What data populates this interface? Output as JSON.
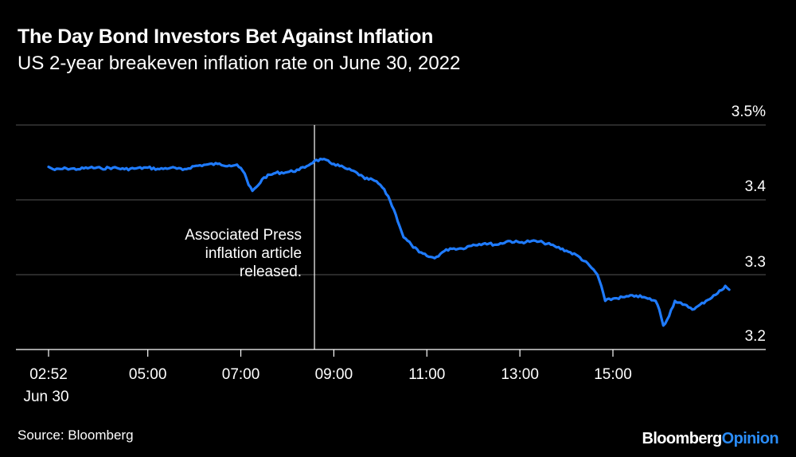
{
  "title": "The Day Bond Investors Bet Against Inflation",
  "subtitle": "US 2-year breakeven inflation rate on June 30, 2022",
  "source": "Source: Bloomberg",
  "logo": {
    "brand": "Bloomberg",
    "suffix": "Opinion"
  },
  "colors": {
    "line": "#1f7bff",
    "grid": "#555555",
    "background": "#000000",
    "accent": "#2a8cf7"
  },
  "chart_data": {
    "type": "line",
    "title": "The Day Bond Investors Bet Against Inflation",
    "subtitle": "US 2-year breakeven inflation rate on June 30, 2022",
    "xlabel": "",
    "ylabel": "",
    "ylim": [
      3.2,
      3.5
    ],
    "xlim": [
      "02:52",
      "17:45"
    ],
    "y_ticks": [
      3.2,
      3.3,
      3.4,
      3.5
    ],
    "y_tick_labels": [
      "3.2",
      "3.3",
      "3.4",
      "3.5%"
    ],
    "x_ticks": [
      {
        "time": "02:52",
        "label": "02:52",
        "sublabel": "Jun 30"
      },
      {
        "time": "05:00",
        "label": "05:00"
      },
      {
        "time": "07:00",
        "label": "07:00"
      },
      {
        "time": "09:00",
        "label": "09:00"
      },
      {
        "time": "11:00",
        "label": "11:00"
      },
      {
        "time": "13:00",
        "label": "13:00"
      },
      {
        "time": "15:00",
        "label": "15:00"
      }
    ],
    "grid": true,
    "annotation": {
      "time": "08:35",
      "lines": [
        "Associated Press",
        "inflation article",
        "released."
      ]
    },
    "series": [
      {
        "values": [
          [
            "02:52",
            3.444
          ],
          [
            "03:00",
            3.44
          ],
          [
            "03:15",
            3.442
          ],
          [
            "03:30",
            3.441
          ],
          [
            "03:45",
            3.443
          ],
          [
            "04:00",
            3.442
          ],
          [
            "04:15",
            3.443
          ],
          [
            "04:30",
            3.441
          ],
          [
            "04:45",
            3.442
          ],
          [
            "05:00",
            3.443
          ],
          [
            "05:15",
            3.441
          ],
          [
            "05:30",
            3.443
          ],
          [
            "05:45",
            3.44
          ],
          [
            "06:00",
            3.445
          ],
          [
            "06:15",
            3.447
          ],
          [
            "06:30",
            3.448
          ],
          [
            "06:45",
            3.446
          ],
          [
            "06:55",
            3.447
          ],
          [
            "07:05",
            3.435
          ],
          [
            "07:10",
            3.42
          ],
          [
            "07:15",
            3.412
          ],
          [
            "07:20",
            3.417
          ],
          [
            "07:30",
            3.43
          ],
          [
            "07:45",
            3.436
          ],
          [
            "08:00",
            3.437
          ],
          [
            "08:15",
            3.44
          ],
          [
            "08:25",
            3.445
          ],
          [
            "08:35",
            3.452
          ],
          [
            "08:45",
            3.454
          ],
          [
            "09:00",
            3.448
          ],
          [
            "09:15",
            3.442
          ],
          [
            "09:30",
            3.436
          ],
          [
            "09:40",
            3.428
          ],
          [
            "09:50",
            3.427
          ],
          [
            "10:00",
            3.42
          ],
          [
            "10:10",
            3.405
          ],
          [
            "10:20",
            3.38
          ],
          [
            "10:30",
            3.35
          ],
          [
            "10:40",
            3.34
          ],
          [
            "10:50",
            3.33
          ],
          [
            "11:00",
            3.325
          ],
          [
            "11:10",
            3.322
          ],
          [
            "11:20",
            3.33
          ],
          [
            "11:30",
            3.335
          ],
          [
            "11:45",
            3.335
          ],
          [
            "12:00",
            3.34
          ],
          [
            "12:15",
            3.342
          ],
          [
            "12:30",
            3.34
          ],
          [
            "12:45",
            3.345
          ],
          [
            "13:00",
            3.343
          ],
          [
            "13:15",
            3.345
          ],
          [
            "13:30",
            3.343
          ],
          [
            "13:45",
            3.338
          ],
          [
            "14:00",
            3.332
          ],
          [
            "14:15",
            3.325
          ],
          [
            "14:30",
            3.312
          ],
          [
            "14:40",
            3.3
          ],
          [
            "14:45",
            3.285
          ],
          [
            "14:50",
            3.265
          ],
          [
            "15:00",
            3.268
          ],
          [
            "15:15",
            3.27
          ],
          [
            "15:30",
            3.272
          ],
          [
            "15:45",
            3.268
          ],
          [
            "15:55",
            3.265
          ],
          [
            "16:00",
            3.253
          ],
          [
            "16:05",
            3.232
          ],
          [
            "16:10",
            3.24
          ],
          [
            "16:20",
            3.265
          ],
          [
            "16:30",
            3.26
          ],
          [
            "16:45",
            3.254
          ],
          [
            "17:00",
            3.265
          ],
          [
            "17:15",
            3.275
          ],
          [
            "17:25",
            3.285
          ],
          [
            "17:30",
            3.28
          ]
        ]
      }
    ]
  }
}
